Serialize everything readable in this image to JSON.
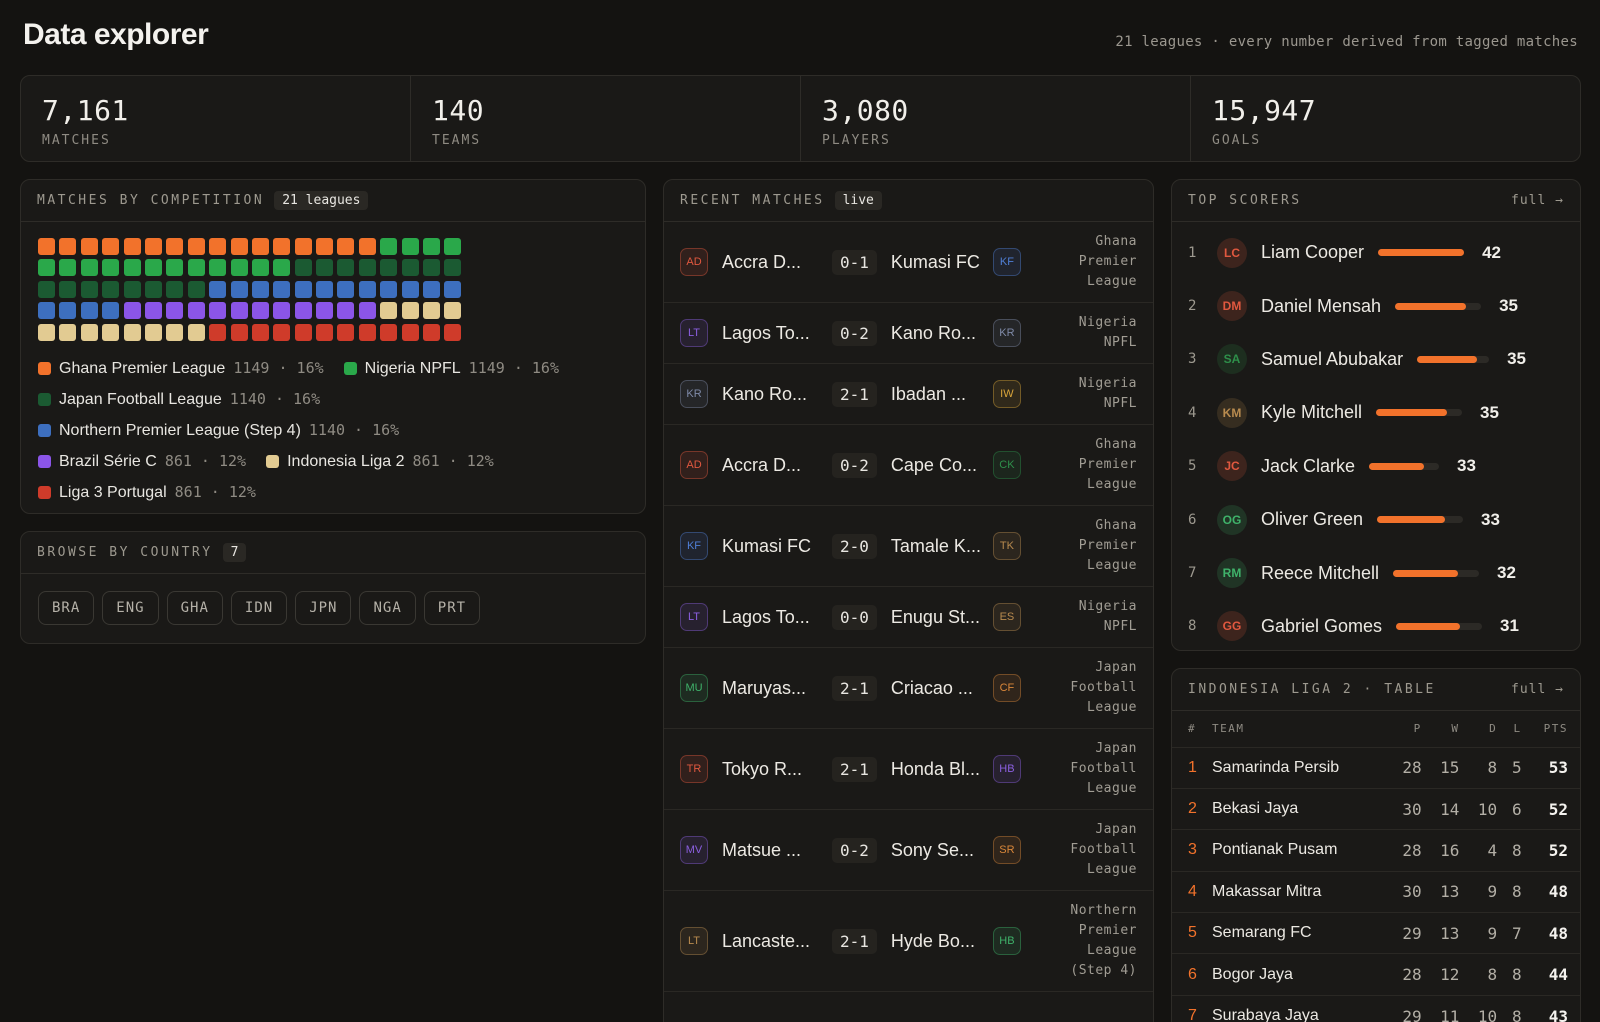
{
  "header": {
    "title": "Data explorer",
    "subtitle": "21 leagues · every number derived from tagged matches"
  },
  "stats": [
    {
      "value": "7,161",
      "label": "MATCHES"
    },
    {
      "value": "140",
      "label": "TEAMS"
    },
    {
      "value": "3,080",
      "label": "PLAYERS"
    },
    {
      "value": "15,947",
      "label": "GOALS"
    }
  ],
  "competitions": {
    "title": "MATCHES BY COMPETITION",
    "chip": "21 leagues",
    "waffle": [
      {
        "count": 16,
        "color": "#f2722b"
      },
      {
        "count": 16,
        "color": "#2aa84a"
      },
      {
        "count": 16,
        "color": "#1b5a32"
      },
      {
        "count": 16,
        "color": "#3d6fbf"
      },
      {
        "count": 12,
        "color": "#8b55e8"
      },
      {
        "count": 12,
        "color": "#e2cb92"
      },
      {
        "count": 12,
        "color": "#cf3b2a"
      }
    ],
    "legend": [
      {
        "name": "Ghana Premier League",
        "count": "1149",
        "pct": "16%",
        "color": "#f2722b"
      },
      {
        "name": "Nigeria NPFL",
        "count": "1149",
        "pct": "16%",
        "color": "#2aa84a"
      },
      {
        "name": "Japan Football League",
        "count": "1140",
        "pct": "16%",
        "color": "#1b5a32"
      },
      {
        "name": "Northern Premier League (Step 4)",
        "count": "1140",
        "pct": "16%",
        "color": "#3d6fbf"
      },
      {
        "name": "Brazil Série C",
        "count": "861",
        "pct": "12%",
        "color": "#8b55e8"
      },
      {
        "name": "Indonesia Liga 2",
        "count": "861",
        "pct": "12%",
        "color": "#e2cb92"
      },
      {
        "name": "Liga 3 Portugal",
        "count": "861",
        "pct": "12%",
        "color": "#cf3b2a"
      }
    ]
  },
  "countries": {
    "title": "BROWSE BY COUNTRY",
    "chip": "7",
    "items": [
      "BRA",
      "ENG",
      "GHA",
      "IDN",
      "JPN",
      "NGA",
      "PRT"
    ]
  },
  "recent": {
    "title": "RECENT MATCHES",
    "chip": "live",
    "matches": [
      {
        "home": "Accra D...",
        "hi": "AD",
        "hc": "#e0583f",
        "score": "0-1",
        "away": "Kumasi FC",
        "ai": "KF",
        "ac": "#4f7fd6",
        "comp": [
          "Ghana",
          "Premier",
          "League"
        ]
      },
      {
        "home": "Lagos To...",
        "hi": "LT",
        "hc": "#8b5fe0",
        "score": "0-2",
        "away": "Kano Ro...",
        "ai": "KR",
        "ac": "#7f8aa8",
        "comp": [
          "Nigeria",
          "NPFL"
        ]
      },
      {
        "home": "Kano Ro...",
        "hi": "KR",
        "hc": "#7f8aa8",
        "score": "2-1",
        "away": "Ibadan ...",
        "ai": "IW",
        "ac": "#d9a53a",
        "comp": [
          "Nigeria",
          "NPFL"
        ]
      },
      {
        "home": "Accra D...",
        "hi": "AD",
        "hc": "#e0583f",
        "score": "0-2",
        "away": "Cape Co...",
        "ai": "CK",
        "ac": "#2e8f4a",
        "comp": [
          "Ghana",
          "Premier",
          "League"
        ]
      },
      {
        "home": "Kumasi FC",
        "hi": "KF",
        "hc": "#4f7fd6",
        "score": "2-0",
        "away": "Tamale K...",
        "ai": "TK",
        "ac": "#b88b4f",
        "comp": [
          "Ghana",
          "Premier",
          "League"
        ]
      },
      {
        "home": "Lagos To...",
        "hi": "LT",
        "hc": "#8b5fe0",
        "score": "0-0",
        "away": "Enugu St...",
        "ai": "ES",
        "ac": "#b88b4f",
        "comp": [
          "Nigeria",
          "NPFL"
        ]
      },
      {
        "home": "Maruyas...",
        "hi": "MU",
        "hc": "#3fb26a",
        "score": "2-1",
        "away": "Criacao ...",
        "ai": "CF",
        "ac": "#d9873a",
        "comp": [
          "Japan",
          "Football",
          "League"
        ]
      },
      {
        "home": "Tokyo R...",
        "hi": "TR",
        "hc": "#e0583f",
        "score": "2-1",
        "away": "Honda Bl...",
        "ai": "HB",
        "ac": "#8b5fe0",
        "comp": [
          "Japan",
          "Football",
          "League"
        ]
      },
      {
        "home": "Matsue ...",
        "hi": "MV",
        "hc": "#8b5fe0",
        "score": "0-2",
        "away": "Sony Se...",
        "ai": "SR",
        "ac": "#d9873a",
        "comp": [
          "Japan",
          "Football",
          "League"
        ]
      },
      {
        "home": "Lancaste...",
        "hi": "LT",
        "hc": "#b88b4f",
        "score": "2-1",
        "away": "Hyde Bo...",
        "ai": "HB",
        "ac": "#3fb26a",
        "comp": [
          "Northern",
          "Premier",
          "League",
          "(Step 4)"
        ]
      }
    ]
  },
  "scorers": {
    "title": "TOP SCORERS",
    "link": "full →",
    "rows": [
      {
        "rank": "1",
        "initials": "LC",
        "color": "#e0583f",
        "name": "Liam Cooper",
        "goals": "42",
        "frac": 1.0
      },
      {
        "rank": "2",
        "initials": "DM",
        "color": "#e0583f",
        "name": "Daniel Mensah",
        "goals": "35",
        "frac": 0.83
      },
      {
        "rank": "3",
        "initials": "SA",
        "color": "#2e8f4a",
        "name": "Samuel Abubakar",
        "goals": "35",
        "frac": 0.83
      },
      {
        "rank": "4",
        "initials": "KM",
        "color": "#b88b4f",
        "name": "Kyle Mitchell",
        "goals": "35",
        "frac": 0.83
      },
      {
        "rank": "5",
        "initials": "JC",
        "color": "#e0583f",
        "name": "Jack Clarke",
        "goals": "33",
        "frac": 0.79
      },
      {
        "rank": "6",
        "initials": "OG",
        "color": "#3fb26a",
        "name": "Oliver Green",
        "goals": "33",
        "frac": 0.79
      },
      {
        "rank": "7",
        "initials": "RM",
        "color": "#3fb26a",
        "name": "Reece Mitchell",
        "goals": "32",
        "frac": 0.76
      },
      {
        "rank": "8",
        "initials": "GG",
        "color": "#e0583f",
        "name": "Gabriel Gomes",
        "goals": "31",
        "frac": 0.74
      }
    ]
  },
  "standings": {
    "title": "INDONESIA LIGA 2 · TABLE",
    "link": "full →",
    "headers": [
      "#",
      "TEAM",
      "P",
      "W",
      "D",
      "L",
      "PTS"
    ],
    "rows": [
      [
        "1",
        "Samarinda Persib",
        "28",
        "15",
        "8",
        "5",
        "53"
      ],
      [
        "2",
        "Bekasi Jaya",
        "30",
        "14",
        "10",
        "6",
        "52"
      ],
      [
        "3",
        "Pontianak Pusam",
        "28",
        "16",
        "4",
        "8",
        "52"
      ],
      [
        "4",
        "Makassar Mitra",
        "30",
        "13",
        "9",
        "8",
        "48"
      ],
      [
        "5",
        "Semarang FC",
        "29",
        "13",
        "9",
        "7",
        "48"
      ],
      [
        "6",
        "Bogor Jaya",
        "28",
        "12",
        "8",
        "8",
        "44"
      ],
      [
        "7",
        "Surabaya Jaya",
        "29",
        "11",
        "10",
        "8",
        "43"
      ]
    ]
  }
}
